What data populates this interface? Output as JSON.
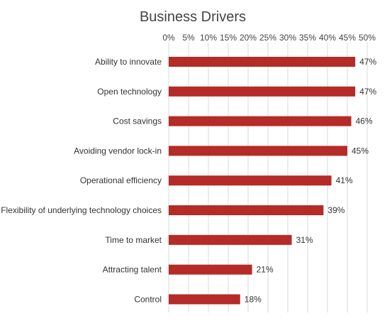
{
  "chart_data": {
    "type": "bar",
    "orientation": "horizontal",
    "title": "Business Drivers",
    "xlabel": "",
    "ylabel": "",
    "categories": [
      "Ability to innovate",
      "Open technology",
      "Cost savings",
      "Avoiding vendor lock-in",
      "Operational efficiency",
      "Flexibility of underlying technology choices",
      "Time to market",
      "Attracting talent",
      "Control"
    ],
    "values": [
      47,
      47,
      46,
      45,
      41,
      39,
      31,
      21,
      18
    ],
    "data_labels": [
      "47%",
      "47%",
      "46%",
      "45%",
      "41%",
      "39%",
      "31%",
      "21%",
      "18%"
    ],
    "xlim": [
      0,
      50
    ],
    "x_ticks": [
      0,
      5,
      10,
      15,
      20,
      25,
      30,
      35,
      40,
      45,
      50
    ],
    "x_tick_labels": [
      "0%",
      "5%",
      "10%",
      "15%",
      "20%",
      "25%",
      "30%",
      "35%",
      "40%",
      "45%",
      "50%"
    ],
    "axis_position": "top",
    "grid": true,
    "legend": "none",
    "bar_color": "#b52b27",
    "grid_color": "#d9d9d9"
  }
}
